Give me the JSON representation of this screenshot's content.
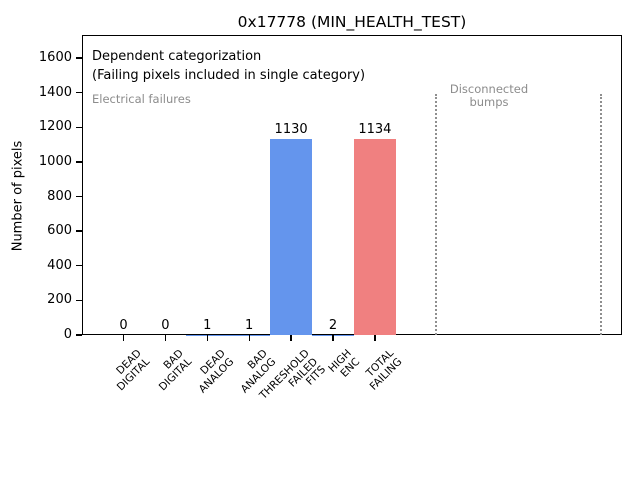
{
  "chart_data": {
    "type": "bar",
    "title": "0x17778 (MIN_HEALTH_TEST)",
    "ylabel": "Number of pixels",
    "xlabel": "",
    "ylim": [
      0,
      1733
    ],
    "yticks": [
      0,
      200,
      400,
      600,
      800,
      1000,
      1200,
      1400,
      1600
    ],
    "categories": [
      "DEAD\nDIGITAL",
      "BAD\nDIGITAL",
      "DEAD\nANALOG",
      "BAD\nANALOG",
      "THRESHOLD\nFAILED\nFITS",
      "HIGH\nENC",
      "TOTAL\nFAILING"
    ],
    "values": [
      0,
      0,
      1,
      1,
      1130,
      2,
      1134
    ],
    "bar_value_labels": [
      "0",
      "0",
      "1",
      "1",
      "1130",
      "2",
      "1134"
    ],
    "bar_colors": [
      "#6495ED",
      "#6495ED",
      "#6495ED",
      "#6495ED",
      "#6495ED",
      "#6495ED",
      "#F08080"
    ],
    "grid": false,
    "legend_position": "none",
    "annotations": {
      "note_line1": "Dependent categorization",
      "note_line2": "(Failing pixels included in single category)",
      "left_section_label": "Electrical failures",
      "right_section_label": "Disconnected\nbumps"
    },
    "section_separator_style": "dotted"
  },
  "colors": {
    "bar_blue": "#6495ED",
    "bar_red": "#F08080",
    "annotation_gray": "#8c8c8c",
    "axis": "#000000",
    "background": "#ffffff"
  }
}
